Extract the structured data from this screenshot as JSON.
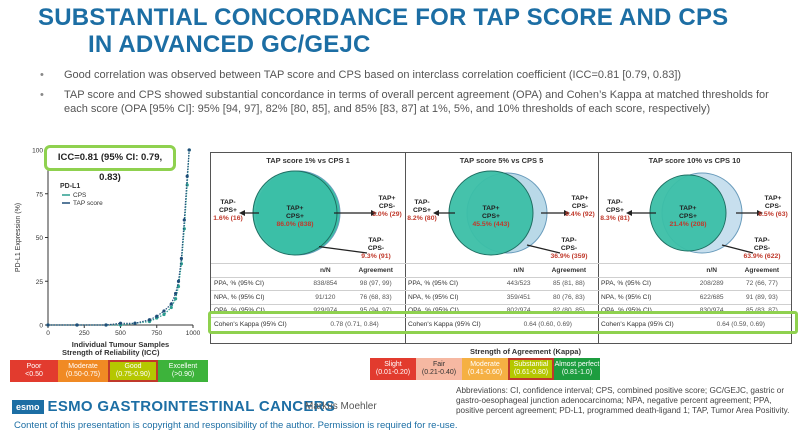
{
  "title": {
    "line1": "SUBSTANTIAL CONCORDANCE FOR TAP SCORE AND CPS",
    "line2": "IN ADVANCED GC/GEJC"
  },
  "bullets": [
    "Good correlation was observed between TAP score and CPS based on interclass correlation coefficient (ICC=0.81 [0.79, 0.83])",
    "TAP score and CPS showed substantial concordance in terms of overall percent agreement (OPA) and Cohen’s Kappa at matched thresholds for each score (OPA [95% CI]: 95% [94, 97], 82% [80, 85], and 85% [83, 87] at 1%, 5%, and 10% thresholds of each score, respectively)"
  ],
  "scatter": {
    "icc_label": "ICC=0.81 (95% CI: 0.79, 0.83)",
    "legend_title": "PD-L1",
    "legend_items": [
      {
        "name": "CPS",
        "color": "#2a9d8f"
      },
      {
        "name": "TAP score",
        "color": "#1f4e79"
      }
    ],
    "xlabel": "Individual Tumour Samples",
    "ylabel": "PD-L1 Expression (%)",
    "xticks": [
      "0",
      "250",
      "500",
      "750",
      "1000"
    ],
    "yticks": [
      "0",
      "25",
      "50",
      "75",
      "100"
    ]
  },
  "chart_data": {
    "type": "scatter",
    "title": "",
    "xlabel": "Individual Tumour Samples",
    "ylabel": "PD-L1 Expression (%)",
    "xlim": [
      0,
      1000
    ],
    "ylim": [
      0,
      100
    ],
    "series": [
      {
        "name": "CPS",
        "x": [
          0,
          200,
          400,
          500,
          600,
          700,
          750,
          800,
          850,
          880,
          900,
          920,
          940,
          960,
          974
        ],
        "y": [
          0,
          0,
          0,
          0,
          1,
          2,
          4,
          6,
          10,
          15,
          22,
          35,
          55,
          80,
          100
        ]
      },
      {
        "name": "TAP score",
        "x": [
          0,
          200,
          400,
          500,
          600,
          700,
          750,
          800,
          850,
          880,
          900,
          920,
          940,
          960,
          974
        ],
        "y": [
          0,
          0,
          0,
          1,
          1,
          3,
          5,
          8,
          12,
          18,
          25,
          38,
          60,
          85,
          100
        ]
      }
    ]
  },
  "panels": [
    {
      "title": "TAP score 1% vs CPS 1",
      "left_label": "TAP-\nCPS+",
      "left_value": "1.6% (16)",
      "center_label": "TAP+\nCPS+",
      "center_value": "86.0% (838)",
      "right_label": "TAP+\nCPS-",
      "right_value": "3.0% (29)",
      "bottom_label": "TAP-\nCPS-",
      "bottom_value": "9.3% (91)",
      "rows": [
        {
          "label": "PPA, % (95% CI)",
          "n": "838/854",
          "agr": "98 (97, 99)"
        },
        {
          "label": "NPA, % (95% CI)",
          "n": "91/120",
          "agr": "76 (68, 83)"
        },
        {
          "label": "OPA, % (95% CI)",
          "n": "929/974",
          "agr": "95 (94, 97)"
        },
        {
          "label": "Cohen's Kappa (95% CI)",
          "n": "0.78 (0.71, 0.84)",
          "agr": ""
        }
      ]
    },
    {
      "title": "TAP score 5% vs CPS 5",
      "left_label": "TAP-\nCPS+",
      "left_value": "8.2% (80)",
      "center_label": "TAP+\nCPS+",
      "center_value": "45.5% (443)",
      "right_label": "TAP+\nCPS-",
      "right_value": "9.4% (92)",
      "bottom_label": "TAP-\nCPS-",
      "bottom_value": "36.9% (359)",
      "rows": [
        {
          "label": "PPA, % (95% CI)",
          "n": "443/523",
          "agr": "85 (81, 88)"
        },
        {
          "label": "NPA, % (95% CI)",
          "n": "359/451",
          "agr": "80 (76, 83)"
        },
        {
          "label": "OPA, % (95% CI)",
          "n": "802/974",
          "agr": "82 (80, 85)"
        },
        {
          "label": "Cohen's Kappa (95% CI)",
          "n": "0.64 (0.60, 0.69)",
          "agr": ""
        }
      ]
    },
    {
      "title": "TAP score 10% vs CPS 10",
      "left_label": "TAP-\nCPS+",
      "left_value": "8.3% (81)",
      "center_label": "TAP+\nCPS+",
      "center_value": "21.4% (208)",
      "right_label": "TAP+\nCPS-",
      "right_value": "6.5% (63)",
      "bottom_label": "TAP-\nCPS-",
      "bottom_value": "63.9% (622)",
      "rows": [
        {
          "label": "PPA, % (95% CI)",
          "n": "208/289",
          "agr": "72 (66, 77)"
        },
        {
          "label": "NPA, % (95% CI)",
          "n": "622/685",
          "agr": "91 (89, 93)"
        },
        {
          "label": "OPA, % (95% CI)",
          "n": "830/974",
          "agr": "85 (83, 87)"
        },
        {
          "label": "Cohen's Kappa (95% CI)",
          "n": "0.64 (0.59, 0.69)",
          "agr": ""
        }
      ]
    }
  ],
  "table_headers": {
    "n": "n/N",
    "agr": "Agreement"
  },
  "reliability": {
    "title": "Strength of Reliability (ICC)",
    "items": [
      {
        "name": "Poor",
        "range": "<0.50"
      },
      {
        "name": "Moderate",
        "range": "(0.50-0.75)"
      },
      {
        "name": "Good",
        "range": "(0.75-0.90)"
      },
      {
        "name": "Excellent",
        "range": "(>0.90)"
      }
    ]
  },
  "agreement": {
    "title": "Strength of Agreement (Kappa)",
    "items": [
      {
        "name": "Slight",
        "range": "(0.01-0.20)"
      },
      {
        "name": "Fair",
        "range": "(0.21-0.40)"
      },
      {
        "name": "Moderate",
        "range": "(0.41-0.60)"
      },
      {
        "name": "Substantial",
        "range": "(0.61-0.80)"
      },
      {
        "name": "Almost perfect",
        "range": "(0.81-1.0)"
      }
    ]
  },
  "footer": {
    "esmo_logo": "esmo",
    "esmo_text": "ESMO GASTROINTESTINAL CANCERS",
    "presenter": "Markus Moehler",
    "copyright": "Content of this presentation is copyright and responsibility of the author. Permission is required for re-use.",
    "abbreviations": "Abbreviations: CI, confidence interval; CPS, combined positive score; GC/GEJC, gastric or gastro-oesophageal junction adenocarcinoma; NPA, negative percent agreement; PPA, positive percent agreement; PD-L1, programmed death-ligand 1; TAP, Tumor Area Positivity."
  }
}
